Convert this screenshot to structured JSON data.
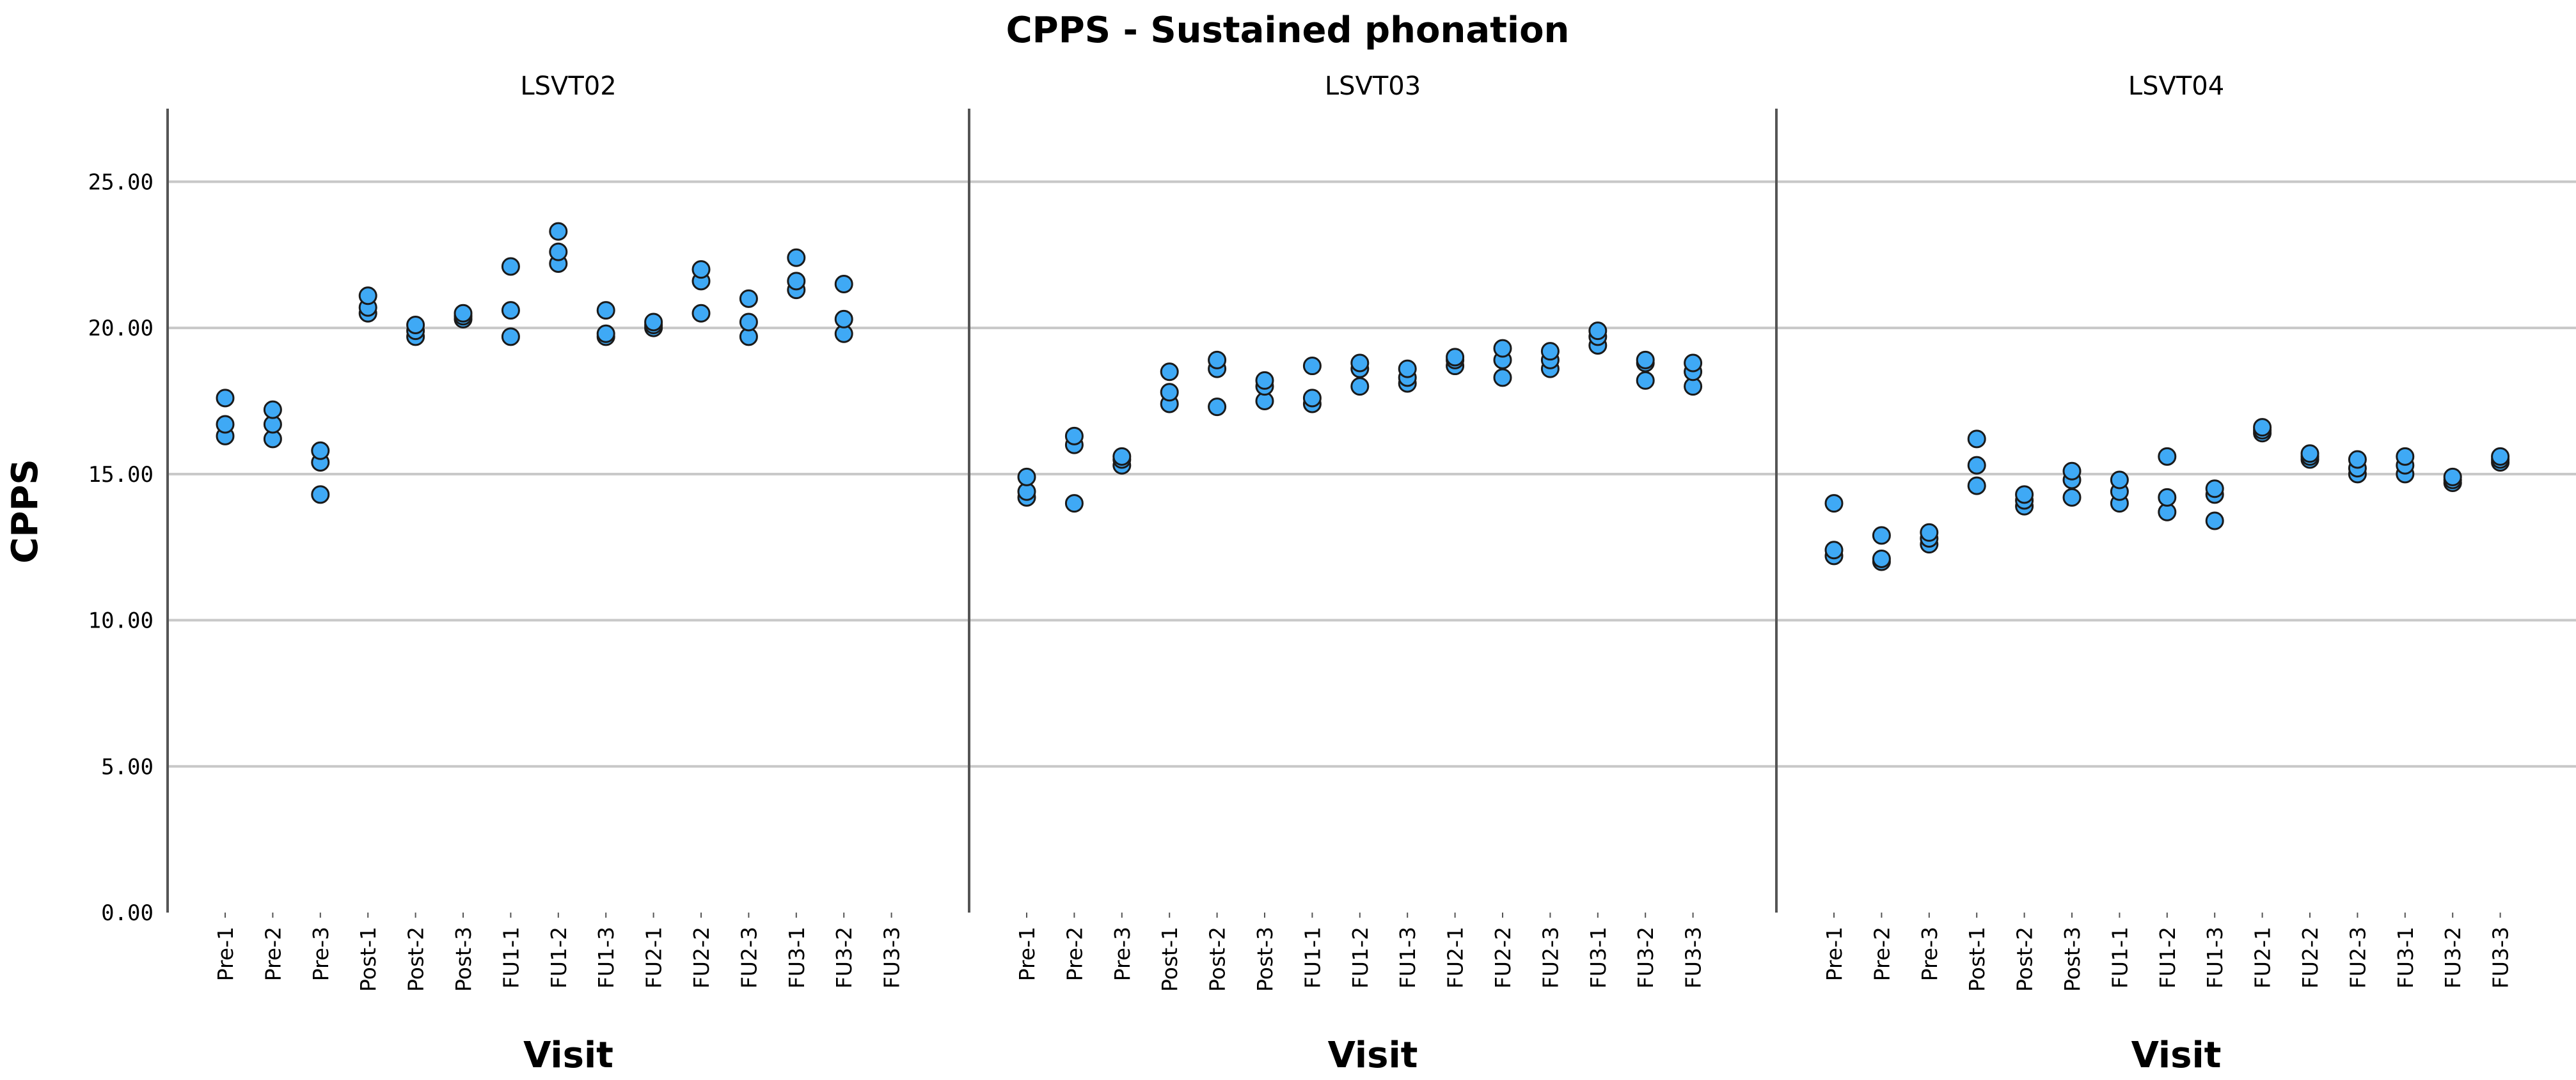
{
  "chart_data": {
    "type": "scatter",
    "title": "CPPS - Sustained phonation",
    "xlabel": "Visit",
    "ylabel": "CPPS",
    "ylim": [
      0,
      27.5
    ],
    "yticks": [
      "0.00",
      "5.00",
      "10.00",
      "15.00",
      "20.00",
      "25.00"
    ],
    "grid": true,
    "marker_color": "#3fa9f5",
    "marker_edge_color": "#1a1a1a",
    "categories": [
      "Pre-1",
      "Pre-2",
      "Pre-3",
      "Post-1",
      "Post-2",
      "Post-3",
      "FU1-1",
      "FU1-2",
      "FU1-3",
      "FU2-1",
      "FU2-2",
      "FU2-3",
      "FU3-1",
      "FU3-2",
      "FU3-3"
    ],
    "panels": [
      {
        "name": "LSVT02",
        "points": [
          [
            "Pre-1",
            16.3
          ],
          [
            "Pre-1",
            16.7
          ],
          [
            "Pre-1",
            17.6
          ],
          [
            "Pre-2",
            16.2
          ],
          [
            "Pre-2",
            16.7
          ],
          [
            "Pre-2",
            17.2
          ],
          [
            "Pre-3",
            14.3
          ],
          [
            "Pre-3",
            15.4
          ],
          [
            "Pre-3",
            15.8
          ],
          [
            "Post-1",
            20.5
          ],
          [
            "Post-1",
            20.7
          ],
          [
            "Post-1",
            21.1
          ],
          [
            "Post-2",
            19.7
          ],
          [
            "Post-2",
            19.9
          ],
          [
            "Post-2",
            20.1
          ],
          [
            "Post-3",
            20.3
          ],
          [
            "Post-3",
            20.4
          ],
          [
            "Post-3",
            20.5
          ],
          [
            "FU1-1",
            19.7
          ],
          [
            "FU1-1",
            20.6
          ],
          [
            "FU1-1",
            22.1
          ],
          [
            "FU1-2",
            22.2
          ],
          [
            "FU1-2",
            22.6
          ],
          [
            "FU1-2",
            23.3
          ],
          [
            "FU1-3",
            19.7
          ],
          [
            "FU1-3",
            19.8
          ],
          [
            "FU1-3",
            20.6
          ],
          [
            "FU2-1",
            20.0
          ],
          [
            "FU2-1",
            20.1
          ],
          [
            "FU2-1",
            20.2
          ],
          [
            "FU2-2",
            20.5
          ],
          [
            "FU2-2",
            21.6
          ],
          [
            "FU2-2",
            22.0
          ],
          [
            "FU2-3",
            19.7
          ],
          [
            "FU2-3",
            20.2
          ],
          [
            "FU2-3",
            21.0
          ],
          [
            "FU3-1",
            21.3
          ],
          [
            "FU3-1",
            21.6
          ],
          [
            "FU3-1",
            22.4
          ],
          [
            "FU3-2",
            19.8
          ],
          [
            "FU3-2",
            20.3
          ],
          [
            "FU3-2",
            21.5
          ]
        ]
      },
      {
        "name": "LSVT03",
        "points": [
          [
            "Pre-1",
            14.2
          ],
          [
            "Pre-1",
            14.4
          ],
          [
            "Pre-1",
            14.9
          ],
          [
            "Pre-2",
            14.0
          ],
          [
            "Pre-2",
            16.0
          ],
          [
            "Pre-2",
            16.3
          ],
          [
            "Pre-3",
            15.3
          ],
          [
            "Pre-3",
            15.5
          ],
          [
            "Pre-3",
            15.6
          ],
          [
            "Post-1",
            17.4
          ],
          [
            "Post-1",
            17.8
          ],
          [
            "Post-1",
            18.5
          ],
          [
            "Post-2",
            17.3
          ],
          [
            "Post-2",
            18.6
          ],
          [
            "Post-2",
            18.9
          ],
          [
            "Post-3",
            17.5
          ],
          [
            "Post-3",
            18.0
          ],
          [
            "Post-3",
            18.2
          ],
          [
            "FU1-1",
            17.4
          ],
          [
            "FU1-1",
            17.6
          ],
          [
            "FU1-1",
            18.7
          ],
          [
            "FU1-2",
            18.0
          ],
          [
            "FU1-2",
            18.6
          ],
          [
            "FU1-2",
            18.8
          ],
          [
            "FU1-3",
            18.1
          ],
          [
            "FU1-3",
            18.3
          ],
          [
            "FU1-3",
            18.6
          ],
          [
            "FU2-1",
            18.7
          ],
          [
            "FU2-1",
            18.9
          ],
          [
            "FU2-1",
            19.0
          ],
          [
            "FU2-2",
            18.3
          ],
          [
            "FU2-2",
            18.9
          ],
          [
            "FU2-2",
            19.3
          ],
          [
            "FU2-3",
            18.6
          ],
          [
            "FU2-3",
            18.9
          ],
          [
            "FU2-3",
            19.2
          ],
          [
            "FU3-1",
            19.4
          ],
          [
            "FU3-1",
            19.7
          ],
          [
            "FU3-1",
            19.9
          ],
          [
            "FU3-2",
            18.2
          ],
          [
            "FU3-2",
            18.8
          ],
          [
            "FU3-2",
            18.9
          ],
          [
            "FU3-3",
            18.0
          ],
          [
            "FU3-3",
            18.5
          ],
          [
            "FU3-3",
            18.8
          ]
        ]
      },
      {
        "name": "LSVT04",
        "points": [
          [
            "Pre-1",
            12.2
          ],
          [
            "Pre-1",
            12.4
          ],
          [
            "Pre-1",
            14.0
          ],
          [
            "Pre-2",
            12.0
          ],
          [
            "Pre-2",
            12.1
          ],
          [
            "Pre-2",
            12.9
          ],
          [
            "Pre-3",
            12.6
          ],
          [
            "Pre-3",
            12.8
          ],
          [
            "Pre-3",
            13.0
          ],
          [
            "Post-1",
            14.6
          ],
          [
            "Post-1",
            15.3
          ],
          [
            "Post-1",
            16.2
          ],
          [
            "Post-2",
            13.9
          ],
          [
            "Post-2",
            14.1
          ],
          [
            "Post-2",
            14.3
          ],
          [
            "Post-3",
            14.2
          ],
          [
            "Post-3",
            14.8
          ],
          [
            "Post-3",
            15.1
          ],
          [
            "FU1-1",
            14.0
          ],
          [
            "FU1-1",
            14.4
          ],
          [
            "FU1-1",
            14.8
          ],
          [
            "FU1-2",
            13.7
          ],
          [
            "FU1-2",
            14.2
          ],
          [
            "FU1-2",
            15.6
          ],
          [
            "FU1-3",
            13.4
          ],
          [
            "FU1-3",
            14.3
          ],
          [
            "FU1-3",
            14.5
          ],
          [
            "FU2-1",
            16.4
          ],
          [
            "FU2-1",
            16.5
          ],
          [
            "FU2-1",
            16.6
          ],
          [
            "FU2-2",
            15.5
          ],
          [
            "FU2-2",
            15.6
          ],
          [
            "FU2-2",
            15.7
          ],
          [
            "FU2-3",
            15.0
          ],
          [
            "FU2-3",
            15.2
          ],
          [
            "FU2-3",
            15.5
          ],
          [
            "FU3-1",
            15.0
          ],
          [
            "FU3-1",
            15.3
          ],
          [
            "FU3-1",
            15.6
          ],
          [
            "FU3-2",
            14.7
          ],
          [
            "FU3-2",
            14.8
          ],
          [
            "FU3-2",
            14.9
          ],
          [
            "FU3-3",
            15.4
          ],
          [
            "FU3-3",
            15.5
          ],
          [
            "FU3-3",
            15.6
          ]
        ]
      }
    ]
  }
}
